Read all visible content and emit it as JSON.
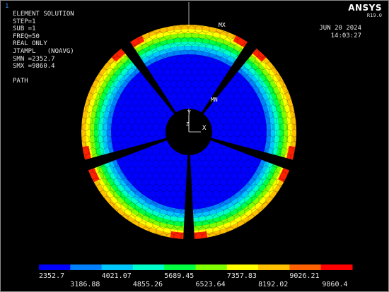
{
  "window": {
    "number": "1"
  },
  "solution": {
    "lines": [
      "ELEMENT SOLUTION",
      "STEP=1",
      "SUB =1",
      "FREQ=50",
      "REAL ONLY",
      "JTAMPL   (NOAVG)",
      "SMN =2352.7",
      "SMX =9860.4",
      "",
      "PATH"
    ]
  },
  "logo": {
    "name": "ANSYS",
    "version": "R19.0"
  },
  "date": {
    "day": "JUN 20 2024",
    "time": "14:03:27"
  },
  "markers": {
    "max": "MX",
    "min": "MN",
    "axis_y": "Y",
    "axis_z": "Z",
    "axis_x": "X"
  },
  "legend": {
    "colors": [
      "#0000ff",
      "#0080ff",
      "#00c8ff",
      "#00ffc8",
      "#00ff40",
      "#80ff00",
      "#ffff00",
      "#ffc000",
      "#ff6000",
      "#ff0000"
    ],
    "labels_top": [
      "2352.7",
      "4021.07",
      "5689.45",
      "7357.83",
      "9026.21"
    ],
    "labels_bottom": [
      "3186.88",
      "4855.26",
      "6523.64",
      "8192.02",
      "9860.4"
    ]
  }
}
